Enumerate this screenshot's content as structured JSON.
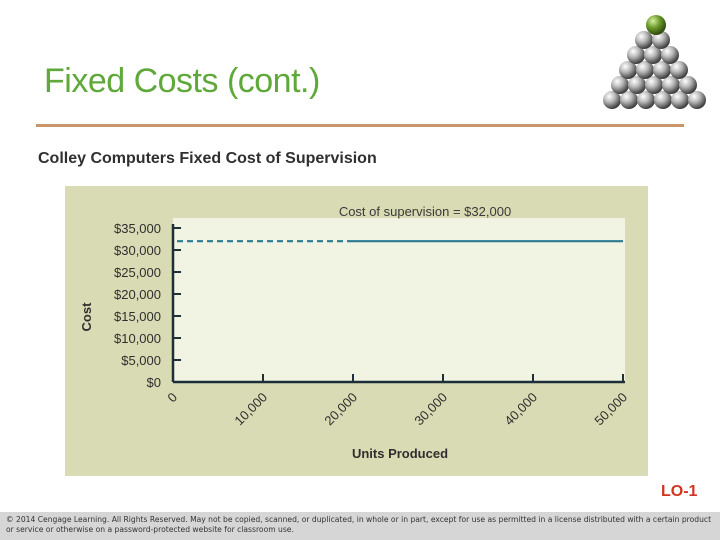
{
  "slide": {
    "title": "Fixed Costs (cont.)",
    "lo_badge": "LO-1",
    "copyright": "© 2014 Cengage Learning. All Rights Reserved. May not be copied, scanned, or duplicated, in whole or in part, except for use as permitted in a license distributed with a certain product or service or otherwise on a password-protected website for classroom use.",
    "colors": {
      "title": "#5fa83a",
      "rule": "#c9956b",
      "panel": "#d9dbb4",
      "plot_area": "#f1f3e3",
      "series_line": "#2a7a92",
      "lo_badge": "#d2341f"
    },
    "logo": {
      "icon": "sphere-pyramid-icon"
    }
  },
  "chart_data": {
    "type": "line",
    "title": "Colley Computers Fixed Cost of Supervision",
    "xlabel": "Units Produced",
    "ylabel": "Cost",
    "xlim": [
      0,
      50000
    ],
    "ylim": [
      0,
      35000
    ],
    "x_ticks": [
      0,
      10000,
      20000,
      30000,
      40000,
      50000
    ],
    "x_tick_labels": [
      "0",
      "10,000",
      "20,000",
      "30,000",
      "40,000",
      "50,000"
    ],
    "y_ticks": [
      0,
      5000,
      10000,
      15000,
      20000,
      25000,
      30000,
      35000
    ],
    "y_tick_labels": [
      "$0",
      "$5,000",
      "$10,000",
      "$15,000",
      "$20,000",
      "$25,000",
      "$30,000",
      "$35,000"
    ],
    "series": [
      {
        "x": [
          0,
          50000
        ],
        "y": [
          32000,
          32000
        ],
        "style": "dashed from 0 to 20,000, solid from 20,000 to 50,000"
      }
    ],
    "dash_until_x": 20000,
    "annotations": [
      {
        "text": "Cost of supervision = $32,000",
        "x": 20000,
        "y": 35000
      }
    ],
    "grid": false,
    "legend": "none"
  }
}
